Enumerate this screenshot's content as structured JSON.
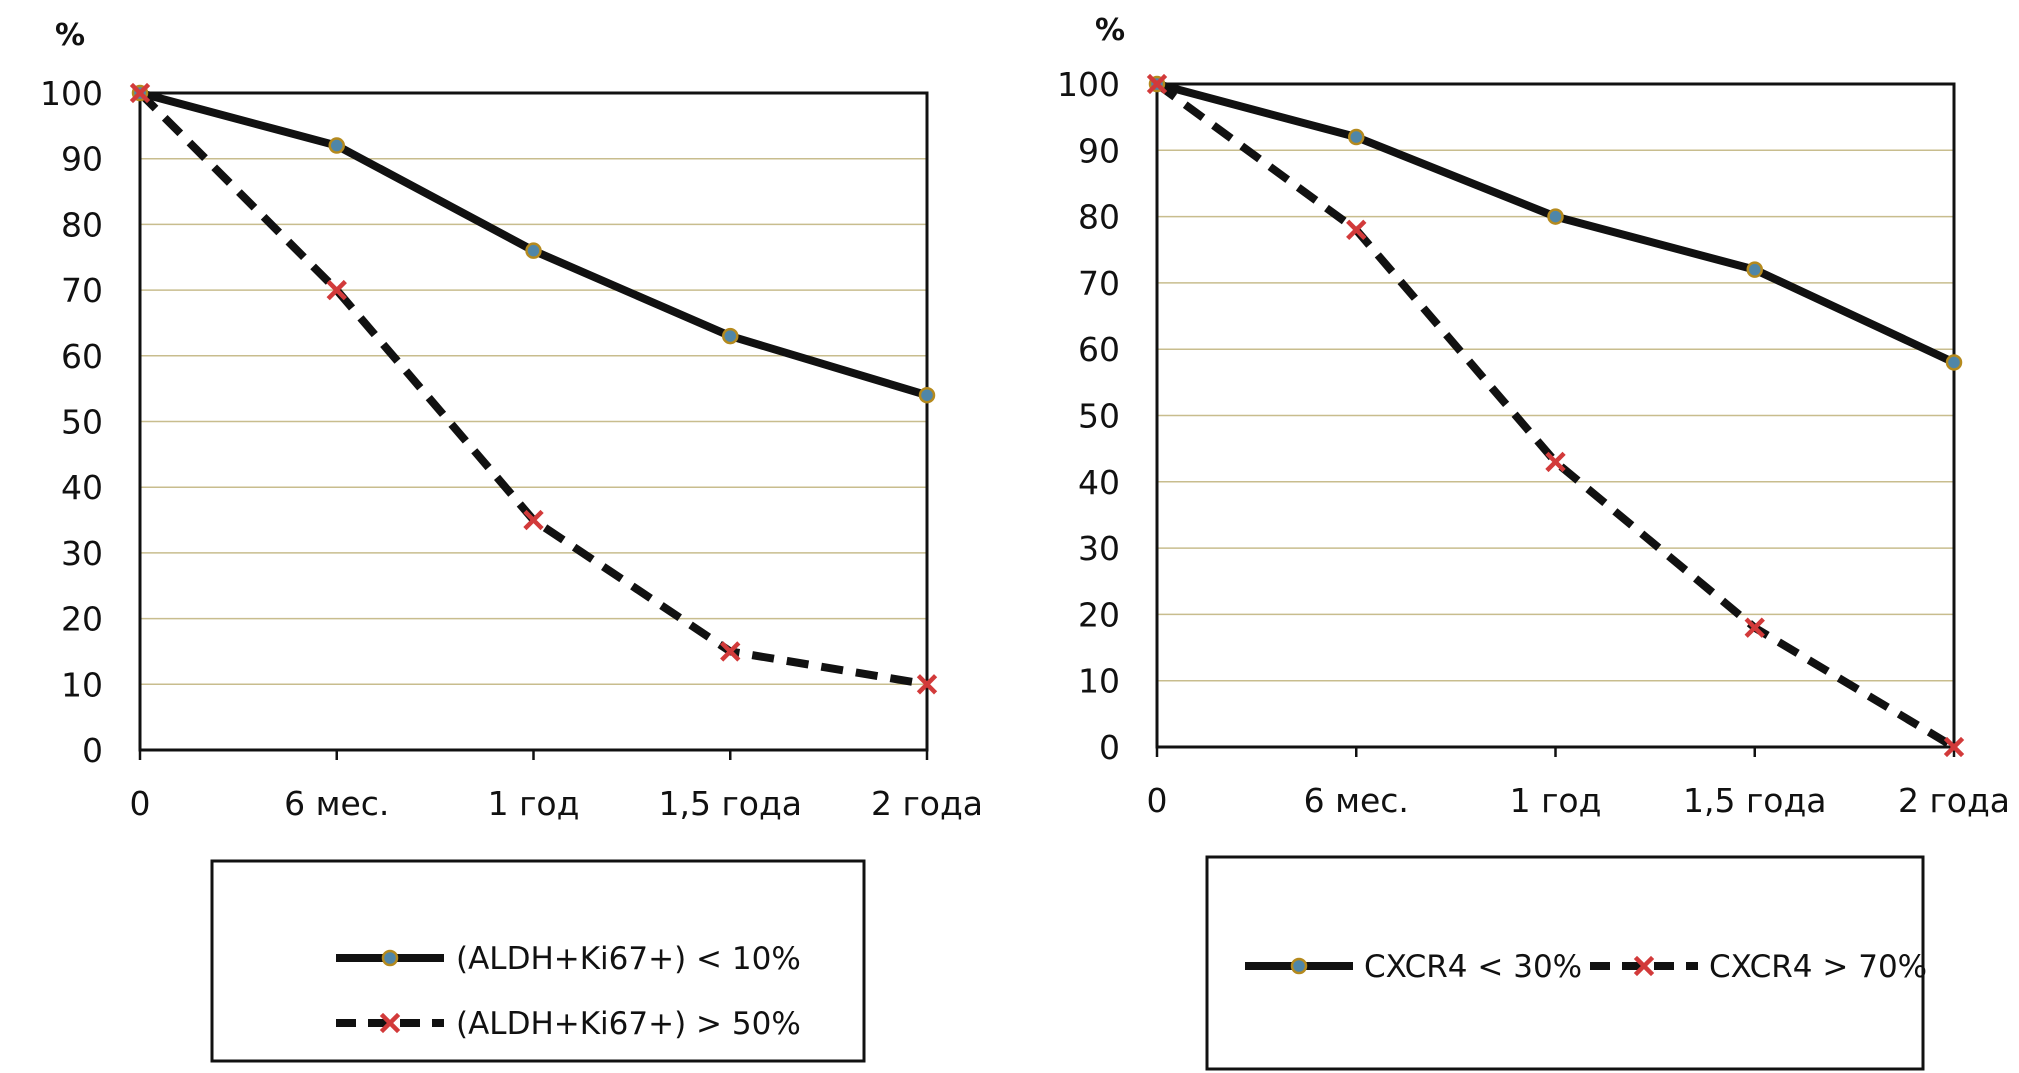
{
  "chart_data": [
    {
      "type": "line",
      "ylabel": "%",
      "categories": [
        "0",
        "6 мес.",
        "1 год",
        "1,5 года",
        "2 года"
      ],
      "ylim": [
        0,
        100
      ],
      "yticks": [
        0,
        10,
        20,
        30,
        40,
        50,
        60,
        70,
        80,
        90,
        100
      ],
      "grid": true,
      "legend_position": "bottom",
      "series": [
        {
          "name": "(ALDH+Ki67+) < 10%",
          "values": [
            100,
            92,
            76,
            63,
            54
          ],
          "style": "solid",
          "marker": "circle"
        },
        {
          "name": "(ALDH+Ki67+) > 50%",
          "values": [
            100,
            70,
            35,
            15,
            10
          ],
          "style": "dashed",
          "marker": "cross"
        }
      ]
    },
    {
      "type": "line",
      "ylabel": "%",
      "categories": [
        "0",
        "6 мес.",
        "1 год",
        "1,5 года",
        "2 года"
      ],
      "ylim": [
        0,
        100
      ],
      "yticks": [
        0,
        10,
        20,
        30,
        40,
        50,
        60,
        70,
        80,
        90,
        100
      ],
      "grid": true,
      "legend_position": "bottom",
      "series": [
        {
          "name": "CXCR4 < 30%",
          "values": [
            100,
            92,
            80,
            72,
            58
          ],
          "style": "solid",
          "marker": "circle"
        },
        {
          "name": "CXCR4 > 70%",
          "values": [
            100,
            78,
            43,
            18,
            0
          ],
          "style": "dashed",
          "marker": "cross"
        }
      ]
    }
  ],
  "colors": {
    "line": "#111111",
    "grid": "#c8bd8e",
    "marker_circle_fill": "#4f86a8",
    "marker_circle_stroke": "#b58a1e",
    "marker_cross": "#d23a3a"
  }
}
